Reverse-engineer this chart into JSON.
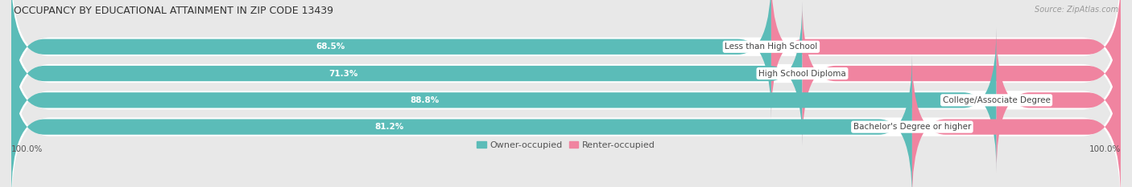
{
  "title": "OCCUPANCY BY EDUCATIONAL ATTAINMENT IN ZIP CODE 13439",
  "source": "Source: ZipAtlas.com",
  "categories": [
    "Less than High School",
    "High School Diploma",
    "College/Associate Degree",
    "Bachelor's Degree or higher"
  ],
  "owner_pct": [
    68.5,
    71.3,
    88.8,
    81.2
  ],
  "renter_pct": [
    31.5,
    28.7,
    11.2,
    18.8
  ],
  "owner_color": "#5bbcb8",
  "renter_color": "#f084a0",
  "background_color": "#e8e8e8",
  "title_fontsize": 9,
  "label_fontsize": 7.5,
  "pct_fontsize": 7.5,
  "legend_label_owner": "Owner-occupied",
  "legend_label_renter": "Renter-occupied",
  "x_left_label": "100.0%",
  "x_right_label": "100.0%",
  "total_width": 100.0
}
